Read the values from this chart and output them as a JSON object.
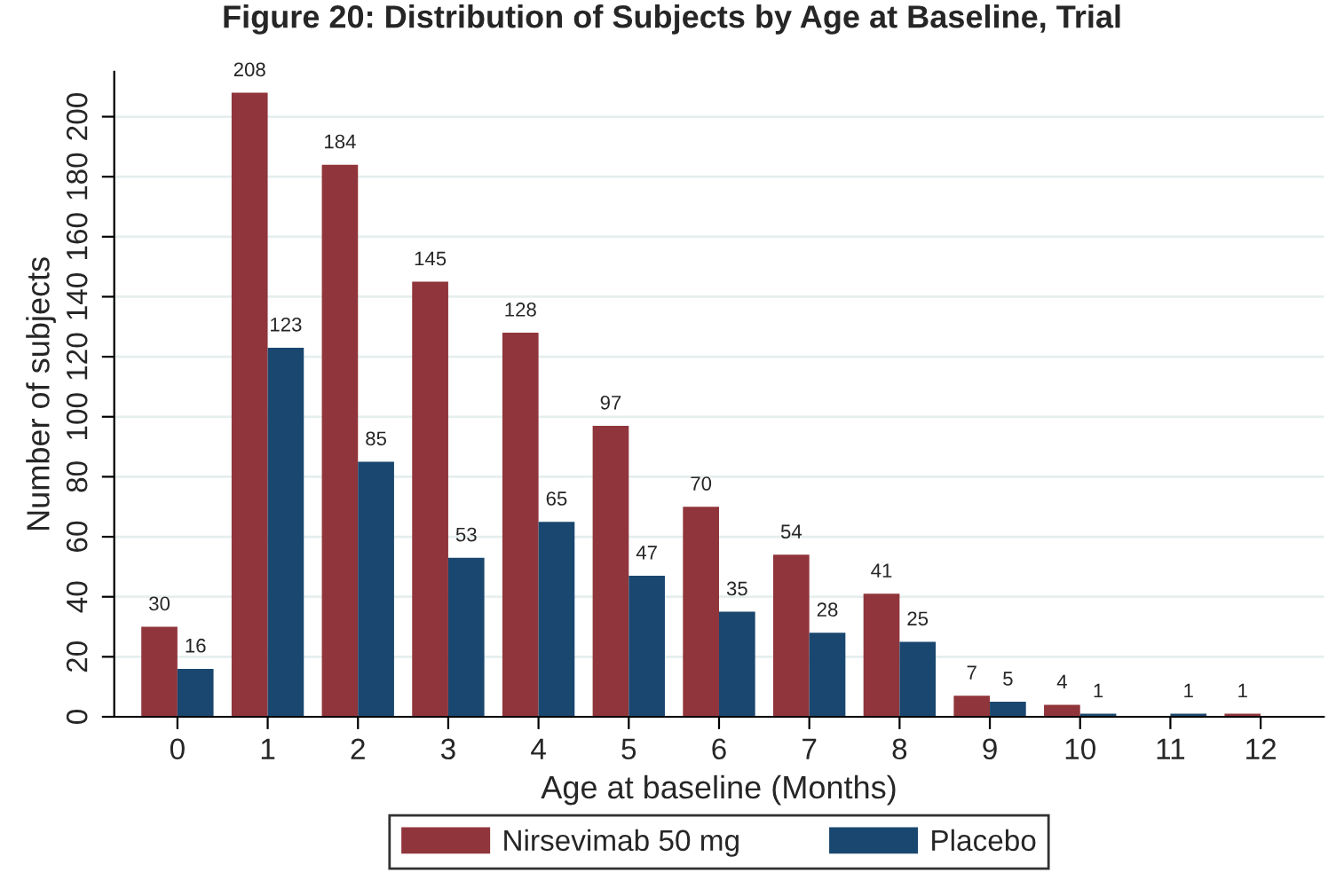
{
  "chart_data": {
    "type": "bar",
    "title": "Figure 20: Distribution of Subjects by Age at Baseline, Trial",
    "xlabel": "Age at baseline (Months)",
    "ylabel": "Number of subjects",
    "categories": [
      "0",
      "1",
      "2",
      "3",
      "4",
      "5",
      "6",
      "7",
      "8",
      "9",
      "10",
      "11",
      "12"
    ],
    "series": [
      {
        "name": "Nirsevimab 50 mg",
        "color": "#90353b",
        "values": [
          30,
          208,
          184,
          145,
          128,
          97,
          70,
          54,
          41,
          7,
          4,
          null,
          1
        ],
        "value_labels": [
          "30",
          "208",
          "184",
          "145",
          "128",
          "97",
          "70",
          "54",
          "41",
          "7",
          "4",
          null,
          "1"
        ]
      },
      {
        "name": "Placebo",
        "color": "#1a476f",
        "values": [
          16,
          123,
          85,
          53,
          65,
          47,
          35,
          28,
          25,
          5,
          1,
          1,
          null
        ],
        "value_labels": [
          "16",
          "123",
          "85",
          "53",
          "65",
          "47",
          "35",
          "28",
          "25",
          "5",
          "1",
          "1",
          null
        ]
      }
    ],
    "ylim": [
      0,
      215
    ],
    "yticks": [
      0,
      20,
      40,
      60,
      80,
      100,
      120,
      140,
      160,
      180,
      200
    ],
    "grid": "y",
    "legend": "bottom"
  }
}
